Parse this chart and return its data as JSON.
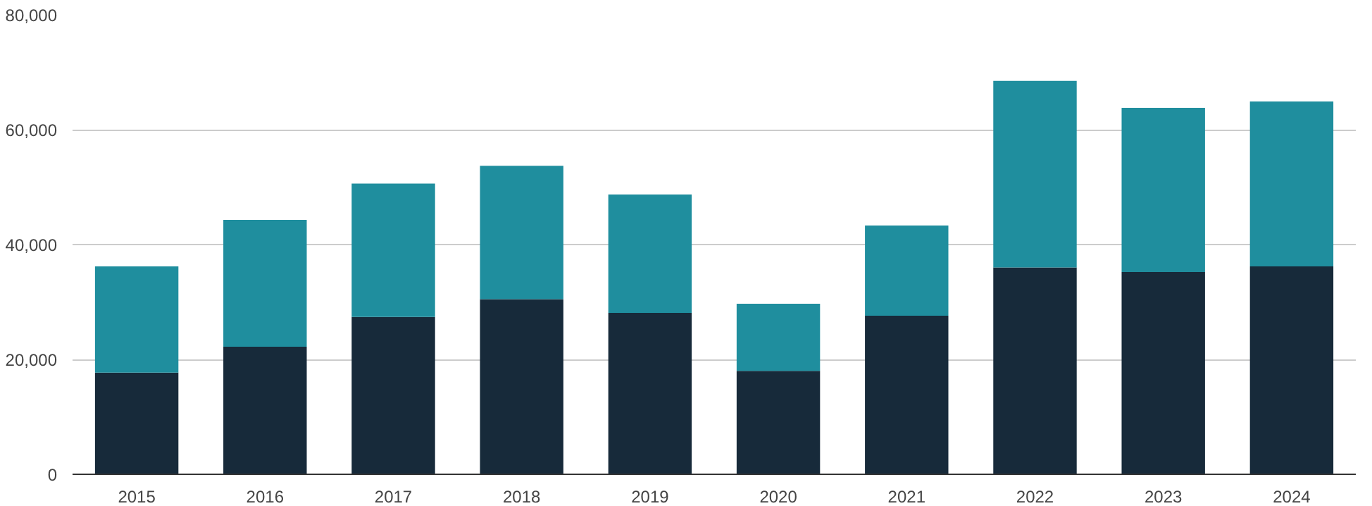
{
  "chart_data": {
    "type": "bar",
    "stacked": true,
    "categories": [
      "2015",
      "2016",
      "2017",
      "2018",
      "2019",
      "2020",
      "2021",
      "2022",
      "2023",
      "2024"
    ],
    "series": [
      {
        "color": "#172a3a",
        "values": [
          17700,
          22200,
          27400,
          30500,
          28100,
          18000,
          27600,
          36000,
          35200,
          36200
        ]
      },
      {
        "color": "#1f8e9e",
        "values": [
          18500,
          22100,
          23200,
          23200,
          20600,
          11700,
          15700,
          32500,
          28600,
          28700
        ]
      }
    ],
    "ylim": [
      0,
      80000
    ],
    "yticks": [
      {
        "value": 0,
        "label": "0"
      },
      {
        "value": 20000,
        "label": "20,000"
      },
      {
        "value": 40000,
        "label": "40,000"
      },
      {
        "value": 60000,
        "label": "60,000"
      },
      {
        "value": 80000,
        "label": "80,000"
      }
    ],
    "grid": "y"
  }
}
